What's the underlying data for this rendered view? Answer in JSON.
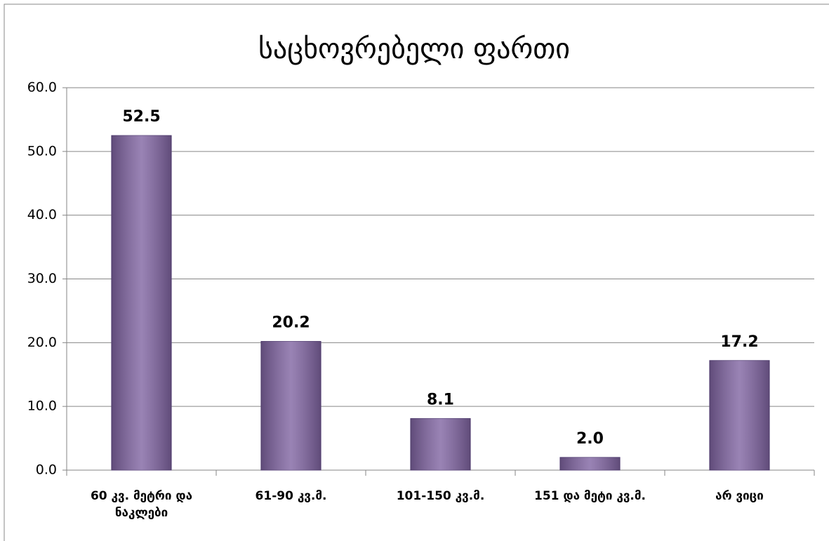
{
  "chart_data": {
    "type": "bar",
    "title": "საცხოვრებელი ფართი",
    "categories": [
      "60 კვ. მეტრი და ნაკლები",
      "61-90 კვ.მ.",
      "101-150 კვ.მ.",
      "151 და მეტი კვ.მ.",
      "არ ვიცი"
    ],
    "values": [
      52.5,
      20.2,
      8.1,
      2,
      17.2
    ],
    "value_labels": [
      "52.5",
      "20.2",
      "8.1",
      "2.0",
      "17.2"
    ],
    "color": "#8064a2",
    "ylim": [
      0,
      60
    ],
    "yticks": [
      {
        "value": 0,
        "label": "0.0"
      },
      {
        "value": 10,
        "label": "10.0"
      },
      {
        "value": 20,
        "label": "20.0"
      },
      {
        "value": 30,
        "label": "30.0"
      },
      {
        "value": 40,
        "label": "40.0"
      },
      {
        "value": 50,
        "label": "50.0"
      },
      {
        "value": 60,
        "label": "60.0"
      }
    ],
    "grid": true
  }
}
